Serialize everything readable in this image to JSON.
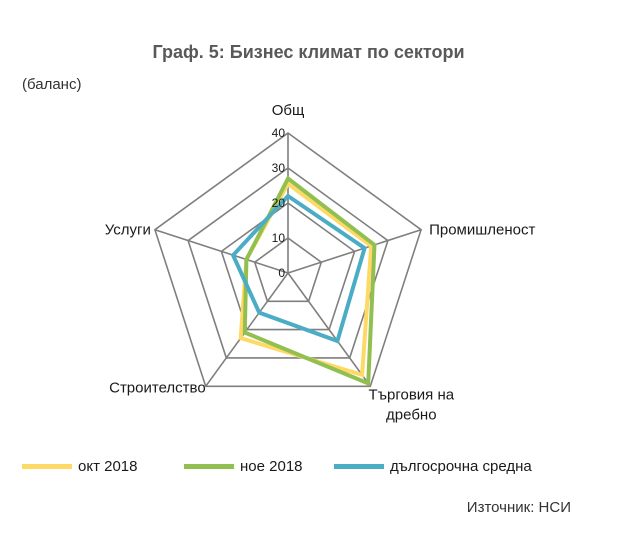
{
  "title": "Граф. 5: Бизнес климат по сектори",
  "unit_label": "(баланс)",
  "source": "Източник: НСИ",
  "colors": {
    "grid": "#7f7f7f",
    "oct": "#ffd966",
    "nov": "#92c050",
    "avg": "#4bacc6"
  },
  "chart_data": {
    "type": "radar",
    "axes": [
      "Общ",
      "Промишленост",
      "Търговия на дребно",
      "Строителство",
      "Услуги"
    ],
    "axis_display": [
      [
        "Общ"
      ],
      [
        "Промишленост"
      ],
      [
        "Търговия на",
        "дребно"
      ],
      [
        "Строителство"
      ],
      [
        "Услуги"
      ]
    ],
    "r_ticks": [
      0,
      10,
      20,
      30,
      40
    ],
    "r_range": [
      0,
      40
    ],
    "series": [
      {
        "name": "окт 2018",
        "color_key": "oct",
        "values": [
          25.5,
          25,
          36,
          23,
          12.5
        ]
      },
      {
        "name": "ное 2018",
        "color_key": "nov",
        "values": [
          27,
          26,
          39,
          21,
          12.5
        ]
      },
      {
        "name": "дългосрочна средна",
        "color_key": "avg",
        "values": [
          22,
          23,
          24,
          14,
          16.5
        ]
      }
    ],
    "legend_position": "bottom"
  }
}
